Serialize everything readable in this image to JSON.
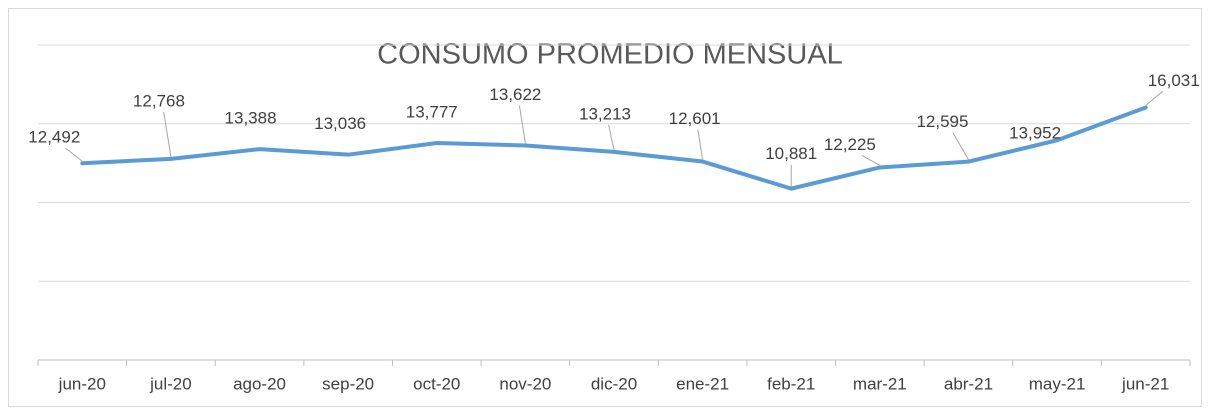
{
  "chart_data": {
    "type": "line",
    "title": "CONSUMO PROMEDIO MENSUAL",
    "categories": [
      "jun-20",
      "jul-20",
      "ago-20",
      "sep-20",
      "oct-20",
      "nov-20",
      "dic-20",
      "ene-21",
      "feb-21",
      "mar-21",
      "abr-21",
      "may-21",
      "jun-21"
    ],
    "series": [
      {
        "name": "Consumo",
        "color": "#5b9bd5",
        "values": [
          12492,
          12768,
          13388,
          13036,
          13777,
          13622,
          13213,
          12601,
          10881,
          12225,
          12595,
          13952,
          16031
        ],
        "value_labels": [
          "12,492",
          "12,768",
          "13,388",
          "13,036",
          "13,777",
          "13,622",
          "13,213",
          "12,601",
          "10,881",
          "12,225",
          "12,595",
          "13,952",
          "16,031"
        ]
      }
    ],
    "ylim": [
      0,
      20000
    ],
    "yticks": [
      0,
      5000,
      10000,
      15000,
      20000
    ],
    "grid": true
  }
}
